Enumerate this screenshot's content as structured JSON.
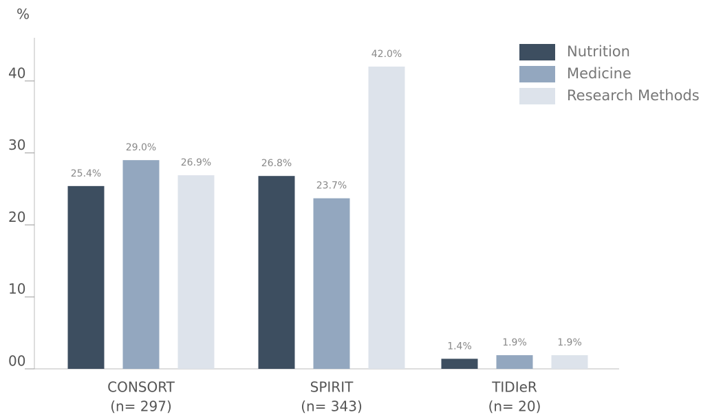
{
  "chart_data": {
    "type": "bar",
    "y_label": "%",
    "categories": [
      "CONSORT",
      "SPIRIT",
      "TIDIeR"
    ],
    "category_subtitles": [
      "(n= 297)",
      "(n= 343)",
      "(n= 20)"
    ],
    "series": [
      {
        "name": "Nutrition",
        "color": "#3d4e60",
        "values": [
          25.4,
          26.8,
          1.4
        ],
        "value_labels": [
          "25.4%",
          "26.8%",
          "1.4%"
        ]
      },
      {
        "name": "Medicine",
        "color": "#93a7bf",
        "values": [
          29.0,
          23.7,
          1.9
        ],
        "value_labels": [
          "29.0%",
          "23.7%",
          "1.9%"
        ]
      },
      {
        "name": "Research Methods",
        "color": "#dde3eb",
        "values": [
          26.9,
          42.0,
          1.9
        ],
        "value_labels": [
          "26.9%",
          "42.0%",
          "1.9%"
        ]
      }
    ],
    "ylim": [
      0,
      46
    ],
    "yticks": [
      {
        "value": 0,
        "label": "00"
      },
      10,
      20,
      30,
      40
    ],
    "legend": "top-right"
  }
}
